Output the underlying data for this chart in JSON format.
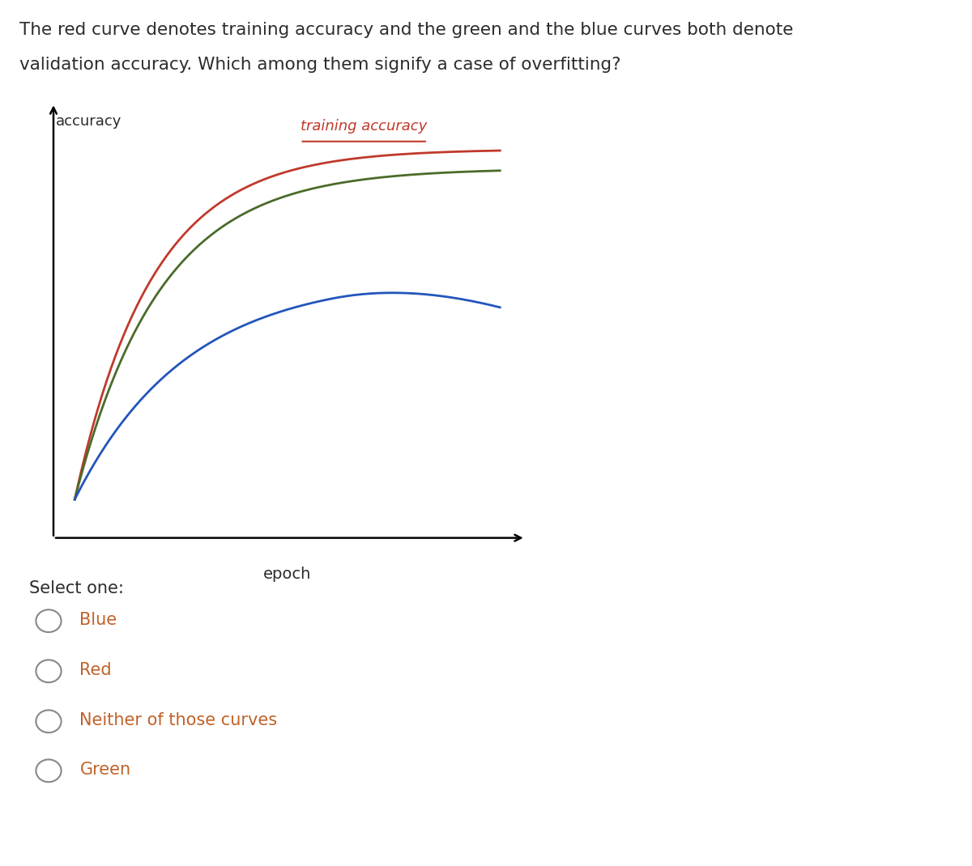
{
  "question_text_line1": "The red curve denotes training accuracy and the green and the blue curves both denote",
  "question_text_line2": "validation accuracy. Which among them signify a case of overfitting?",
  "ylabel": "accuracy",
  "xlabel": "epoch",
  "legend_label": "training accuracy",
  "legend_color": "#c0392b",
  "red_curve_color": "#c0392b",
  "green_curve_color": "#4a6b2a",
  "blue_curve_color": "#2255bb",
  "options": [
    "Blue",
    "Red",
    "Neither of those curves",
    "Green"
  ],
  "option_text_color": "#c0622a",
  "circle_color": "#888888",
  "bg_color": "#ffffff",
  "text_color": "#2c2c2c",
  "question_fontsize": 15.5,
  "axis_label_fontsize": 13,
  "legend_fontsize": 13,
  "options_fontsize": 15,
  "select_fontsize": 15
}
